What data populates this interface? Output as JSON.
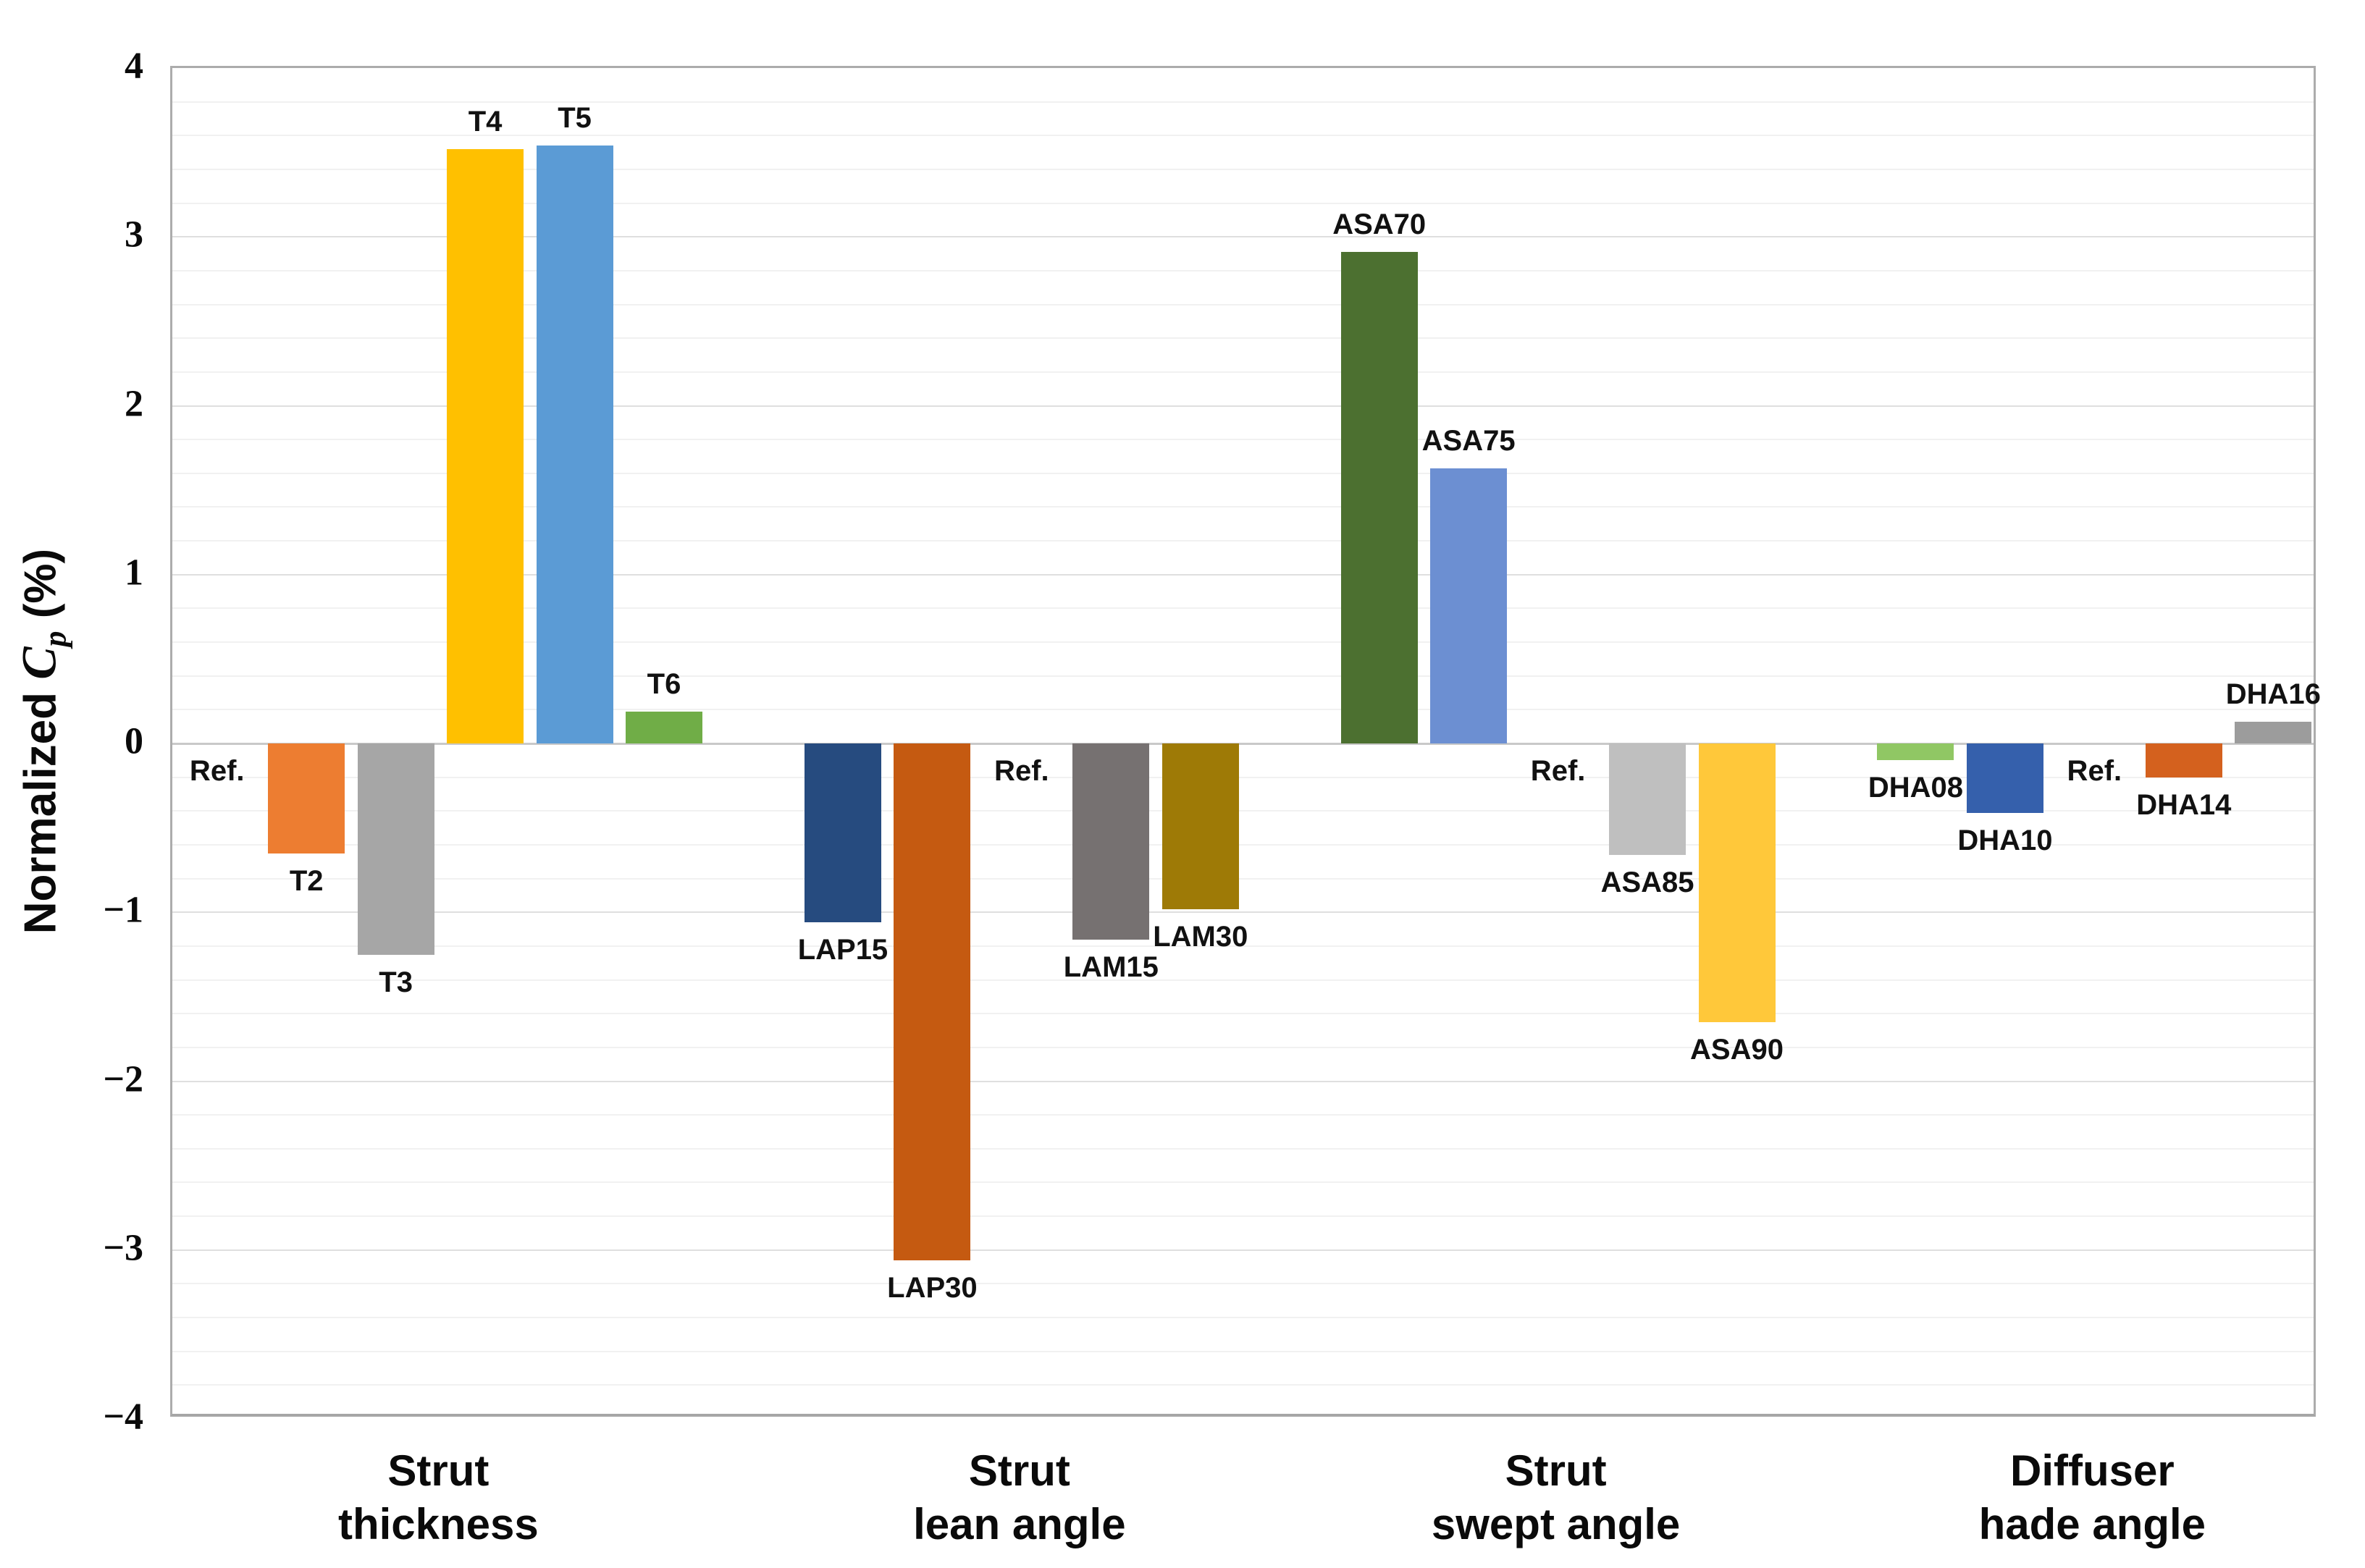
{
  "chart_data": {
    "type": "bar",
    "title": "",
    "ylabel": "Normalized Cp (%)",
    "ylabel_parts": {
      "prefix": "Normalized ",
      "symbol": "C",
      "subscript": "p",
      "suffix": " (%)"
    },
    "xlabel": "",
    "ylim": [
      -4,
      4
    ],
    "y_major_step": 1,
    "y_minor_step": 0.2,
    "grid": "on",
    "legend": "none",
    "yticks": [
      {
        "label": "4",
        "value": 4
      },
      {
        "label": "3",
        "value": 3
      },
      {
        "label": "2",
        "value": 2
      },
      {
        "label": "1",
        "value": 1
      },
      {
        "label": "0",
        "value": 0
      },
      {
        "label": "−1",
        "value": -1
      },
      {
        "label": "−2",
        "value": -2
      },
      {
        "label": "−3",
        "value": -3
      },
      {
        "label": "−4",
        "value": -4
      }
    ],
    "groups": [
      {
        "label": "Strut thickness",
        "label_lines": [
          "Strut",
          "thickness"
        ],
        "bars": [
          {
            "name": "Ref.",
            "value": 0,
            "ref": true,
            "color": null
          },
          {
            "name": "T2",
            "value": -0.65,
            "ref": false,
            "color": "#ED7D31"
          },
          {
            "name": "T3",
            "value": -1.25,
            "ref": false,
            "color": "#A6A6A6"
          },
          {
            "name": "T4",
            "value": 3.52,
            "ref": false,
            "color": "#FFC000"
          },
          {
            "name": "T5",
            "value": 3.54,
            "ref": false,
            "color": "#5B9BD5"
          },
          {
            "name": "T6",
            "value": 0.19,
            "ref": false,
            "color": "#70AD47"
          }
        ]
      },
      {
        "label": "Strut lean angle",
        "label_lines": [
          "Strut",
          "lean angle"
        ],
        "bars": [
          {
            "name": "LAP15",
            "value": -1.06,
            "ref": false,
            "color": "#264B7F"
          },
          {
            "name": "LAP30",
            "value": -3.06,
            "ref": false,
            "color": "#C55A11"
          },
          {
            "name": "Ref.",
            "value": 0,
            "ref": true,
            "color": null
          },
          {
            "name": "LAM15",
            "value": -1.16,
            "ref": false,
            "color": "#767171"
          },
          {
            "name": "LAM30",
            "value": -0.98,
            "ref": false,
            "color": "#9E7A06"
          }
        ]
      },
      {
        "label": "Strut swept angle",
        "label_lines": [
          "Strut",
          "swept angle"
        ],
        "bars": [
          {
            "name": "ASA70",
            "value": 2.91,
            "ref": false,
            "color": "#4C7030"
          },
          {
            "name": "ASA75",
            "value": 1.63,
            "ref": false,
            "color": "#6C8FD2"
          },
          {
            "name": "Ref.",
            "value": 0,
            "ref": true,
            "color": null
          },
          {
            "name": "ASA85",
            "value": -0.66,
            "ref": false,
            "color": "#BFBFBF"
          },
          {
            "name": "ASA90",
            "value": -1.65,
            "ref": false,
            "color": "#FFC83A"
          }
        ]
      },
      {
        "label": "Diffuser hade angle",
        "label_lines": [
          "Diffuser",
          "hade angle"
        ],
        "bars": [
          {
            "name": "DHA08",
            "value": -0.1,
            "ref": false,
            "color": "#90C764"
          },
          {
            "name": "DHA10",
            "value": -0.41,
            "ref": false,
            "color": "#3560AC"
          },
          {
            "name": "Ref.",
            "value": 0,
            "ref": true,
            "color": null
          },
          {
            "name": "DHA14",
            "value": -0.2,
            "ref": false,
            "color": "#D4611E"
          },
          {
            "name": "DHA16",
            "value": 0.13,
            "ref": false,
            "color": "#9C9C9C"
          }
        ]
      }
    ],
    "colors": {
      "grid_minor": "#F1F1F1",
      "grid_major": "#DFDFDF",
      "zero_line": "#C9C9C9",
      "plot_border": "#ACACAC",
      "text": "#0A0A0A"
    }
  }
}
